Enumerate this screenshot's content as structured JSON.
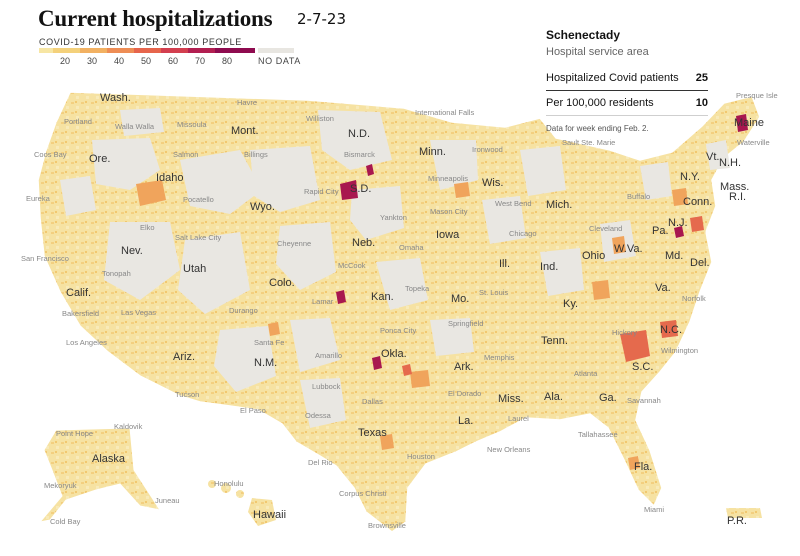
{
  "header": {
    "title": "Current hospitalizations",
    "date_stamp": "2-7-23"
  },
  "legend": {
    "title": "COVID-19 PATIENTS PER 100,000 PEOPLE",
    "ticks": [
      "20",
      "30",
      "40",
      "50",
      "60",
      "70",
      "80"
    ],
    "no_data_label": "NO DATA",
    "colors": [
      "#f7e6a4",
      "#f4d17b",
      "#f2b162",
      "#ee8d55",
      "#e6654c",
      "#d33f4f",
      "#b21f51",
      "#8e0b4f"
    ],
    "no_data_color": "#e8e6e1"
  },
  "info_panel": {
    "place": "Schenectady",
    "area_type": "Hospital service area",
    "rows": [
      {
        "label": "Hospitalized Covid patients",
        "value": "25"
      },
      {
        "label": "Per 100,000 residents",
        "value": "10"
      }
    ],
    "note": "Data for week ending Feb. 2."
  },
  "states": [
    {
      "name": "Wash."
    },
    {
      "name": "Ore."
    },
    {
      "name": "Calif."
    },
    {
      "name": "Nev."
    },
    {
      "name": "Idaho"
    },
    {
      "name": "Mont."
    },
    {
      "name": "Wyo."
    },
    {
      "name": "Utah"
    },
    {
      "name": "Ariz."
    },
    {
      "name": "Colo."
    },
    {
      "name": "N.M."
    },
    {
      "name": "N.D."
    },
    {
      "name": "S.D."
    },
    {
      "name": "Neb."
    },
    {
      "name": "Kan."
    },
    {
      "name": "Okla."
    },
    {
      "name": "Texas"
    },
    {
      "name": "Minn."
    },
    {
      "name": "Iowa"
    },
    {
      "name": "Mo."
    },
    {
      "name": "Ark."
    },
    {
      "name": "La."
    },
    {
      "name": "Wis."
    },
    {
      "name": "Ill."
    },
    {
      "name": "Mich."
    },
    {
      "name": "Ind."
    },
    {
      "name": "Ohio"
    },
    {
      "name": "Ky."
    },
    {
      "name": "Tenn."
    },
    {
      "name": "Miss."
    },
    {
      "name": "Ala."
    },
    {
      "name": "Ga."
    },
    {
      "name": "Fla."
    },
    {
      "name": "S.C."
    },
    {
      "name": "N.C."
    },
    {
      "name": "Va."
    },
    {
      "name": "W.Va."
    },
    {
      "name": "Pa."
    },
    {
      "name": "N.Y."
    },
    {
      "name": "Vt."
    },
    {
      "name": "N.H."
    },
    {
      "name": "Maine"
    },
    {
      "name": "Mass."
    },
    {
      "name": "R.I."
    },
    {
      "name": "Conn."
    },
    {
      "name": "N.J."
    },
    {
      "name": "Md."
    },
    {
      "name": "Del."
    },
    {
      "name": "Alaska"
    },
    {
      "name": "Hawaii"
    },
    {
      "name": "P.R."
    }
  ],
  "cities": [
    {
      "name": "Portland"
    },
    {
      "name": "Walla Walla"
    },
    {
      "name": "Havre"
    },
    {
      "name": "Missoula"
    },
    {
      "name": "Williston"
    },
    {
      "name": "International Falls"
    },
    {
      "name": "Presque Isle"
    },
    {
      "name": "Coos Bay"
    },
    {
      "name": "Salmon"
    },
    {
      "name": "Billings"
    },
    {
      "name": "Bismarck"
    },
    {
      "name": "Ironwood"
    },
    {
      "name": "Sault Ste. Marie"
    },
    {
      "name": "Waterville"
    },
    {
      "name": "Rapid City"
    },
    {
      "name": "Minneapolis"
    },
    {
      "name": "Pocatello"
    },
    {
      "name": "Eureka"
    },
    {
      "name": "West Bend"
    },
    {
      "name": "Buffalo"
    },
    {
      "name": "Mason City"
    },
    {
      "name": "Yankton"
    },
    {
      "name": "Elko"
    },
    {
      "name": "Salt Lake City"
    },
    {
      "name": "Cheyenne"
    },
    {
      "name": "Chicago"
    },
    {
      "name": "Cleveland"
    },
    {
      "name": "Omaha"
    },
    {
      "name": "San Francisco"
    },
    {
      "name": "Tonopah"
    },
    {
      "name": "McCook"
    },
    {
      "name": "Topeka"
    },
    {
      "name": "Lamar"
    },
    {
      "name": "Bakersfield"
    },
    {
      "name": "Las Vegas"
    },
    {
      "name": "Durango"
    },
    {
      "name": "St. Louis"
    },
    {
      "name": "Norfolk"
    },
    {
      "name": "Springfield"
    },
    {
      "name": "Ponca City"
    },
    {
      "name": "Los Angeles"
    },
    {
      "name": "Santa Fe"
    },
    {
      "name": "Amarillo"
    },
    {
      "name": "Hickory"
    },
    {
      "name": "Wilmington"
    },
    {
      "name": "Memphis"
    },
    {
      "name": "Tucson"
    },
    {
      "name": "Lubbock"
    },
    {
      "name": "Atlanta"
    },
    {
      "name": "El Paso"
    },
    {
      "name": "Odessa"
    },
    {
      "name": "El Dorado"
    },
    {
      "name": "Dallas"
    },
    {
      "name": "Laurel"
    },
    {
      "name": "Savannah"
    },
    {
      "name": "Point Hope"
    },
    {
      "name": "Kaldovik"
    },
    {
      "name": "Tallahassee"
    },
    {
      "name": "Houston"
    },
    {
      "name": "New Orleans"
    },
    {
      "name": "Del Rio"
    },
    {
      "name": "Mekoryuk"
    },
    {
      "name": "Honolulu"
    },
    {
      "name": "Corpus Christi"
    },
    {
      "name": "Juneau"
    },
    {
      "name": "Miami"
    },
    {
      "name": "Cold Bay"
    },
    {
      "name": "Brownsville"
    }
  ]
}
